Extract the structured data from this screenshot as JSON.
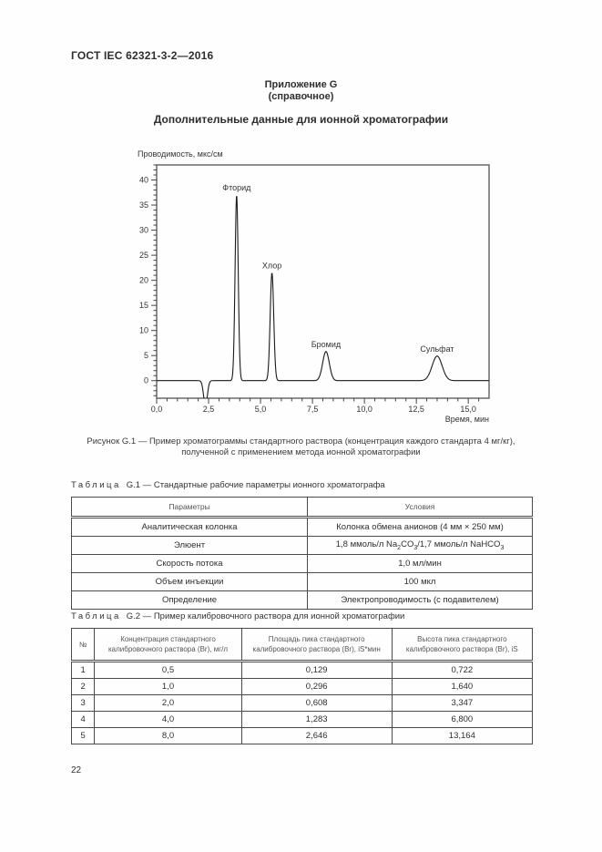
{
  "page": {
    "header": "ГОСТ IEC 62321-3-2—2016",
    "page_number": "22"
  },
  "appendix": {
    "line1": "Приложение G",
    "line2": "(справочное)",
    "section_title": "Дополнительные данные для ионной хроматографии"
  },
  "figure": {
    "caption_line1": "Рисунок G.1 — Пример хроматограммы стандартного раствора (концентрация каждого стандарта 4 мг/кг),",
    "caption_line2": "полученной с применением метода ионной хроматографии"
  },
  "chart_data": {
    "type": "line",
    "title": "",
    "ylabel": "Проводимость, мкс/см",
    "xlabel": "Время, мин",
    "xlim": [
      0,
      16
    ],
    "ylim": [
      -3.5,
      43
    ],
    "x_major_ticks": [
      0,
      2.5,
      5,
      7.5,
      10,
      12.5,
      15
    ],
    "x_tick_labels": [
      "0,0",
      "2,5",
      "5,0",
      "7,5",
      "10,0",
      "12,5",
      "15,0"
    ],
    "x_minor_step": 0.5,
    "y_major_ticks": [
      0,
      5,
      10,
      15,
      20,
      25,
      30,
      35,
      40
    ],
    "y_minor_step": 1,
    "grid": false,
    "baseline": 0,
    "injection_dip": {
      "center": 2.35,
      "depth": -5,
      "sigma": 0.09
    },
    "peaks": [
      {
        "label": "Фторид",
        "center": 3.85,
        "height": 37,
        "sigma": 0.075
      },
      {
        "label": "Хлор",
        "center": 5.55,
        "height": 21.5,
        "sigma": 0.085
      },
      {
        "label": "Бромид",
        "center": 8.15,
        "height": 5.8,
        "sigma": 0.16
      },
      {
        "label": "Сульфат",
        "center": 13.5,
        "height": 4.9,
        "sigma": 0.24
      }
    ]
  },
  "table_g1": {
    "caption_word": "Таблица",
    "caption_text": "G.1 — Стандартные рабочие параметры ионного хроматографа",
    "headers": [
      "Параметры",
      "Условия"
    ],
    "rows": [
      [
        "Аналитическая колонка",
        "Колонка обмена анионов (4 мм × 250 мм)"
      ],
      [
        "Элюент",
        {
          "segments": [
            {
              "t": "1,8 ммоль/л Na"
            },
            {
              "t": "2",
              "sub": true
            },
            {
              "t": "CO"
            },
            {
              "t": "3",
              "sub": true
            },
            {
              "t": "/1,7 ммоль/л NaHCO"
            },
            {
              "t": "3",
              "sub": true
            }
          ]
        }
      ],
      [
        "Скорость потока",
        "1,0 мл/мин"
      ],
      [
        "Объем инъекции",
        "100 мкл"
      ],
      [
        "Определение",
        "Электропроводимость (с подавителем)"
      ]
    ]
  },
  "table_g2": {
    "caption_word": "Таблица",
    "caption_text": "G.2 — Пример калибровочного раствора для ионной хроматографии",
    "headers": [
      "№",
      "Концентрация стандартного калибровочного раствора (Br), мг/л",
      "Площадь пика стандартного калибровочного раствора (Br), iS*мин",
      "Высота пика стандартного калибровочного раствора (Br), iS"
    ],
    "rows": [
      [
        "1",
        "0,5",
        "0,129",
        "0,722"
      ],
      [
        "2",
        "1,0",
        "0,296",
        "1,640"
      ],
      [
        "3",
        "2,0",
        "0,608",
        "3,347"
      ],
      [
        "4",
        "4,0",
        "1,283",
        "6,800"
      ],
      [
        "5",
        "8,0",
        "2,646",
        "13,164"
      ]
    ]
  }
}
